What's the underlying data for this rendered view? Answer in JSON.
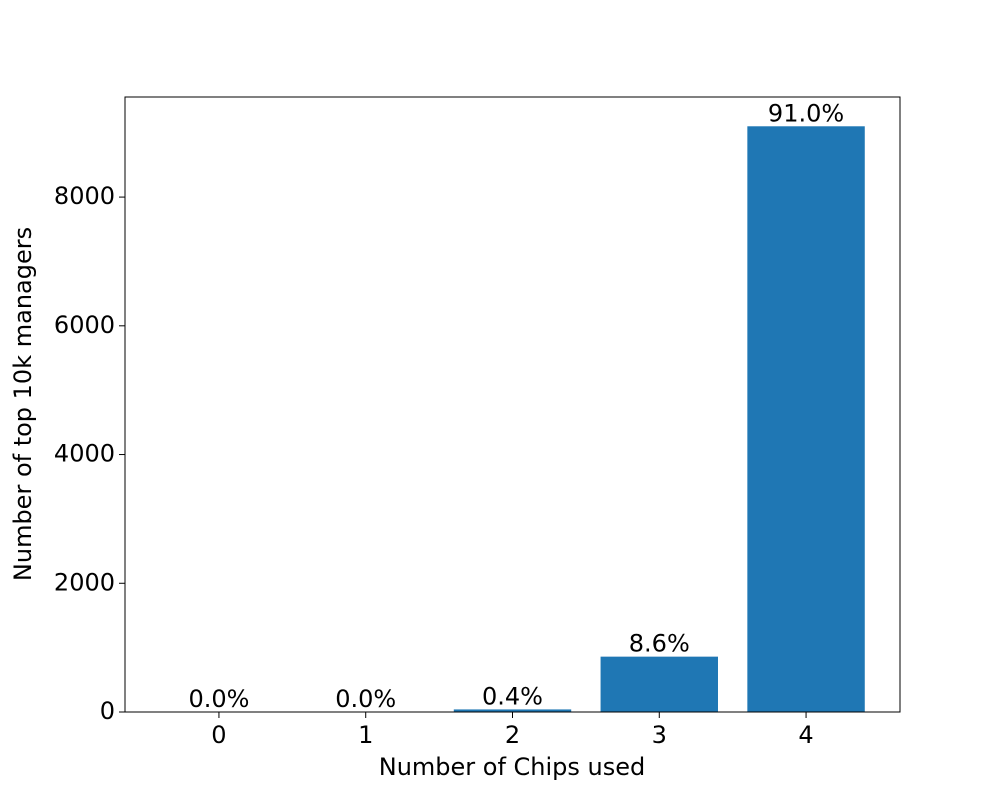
{
  "chart_data": {
    "type": "bar",
    "x_label": "Number of Chips used",
    "y_label": "Number of top 10k managers",
    "categories": [
      "0",
      "1",
      "2",
      "3",
      "4"
    ],
    "values": [
      0,
      0,
      40,
      860,
      9100
    ],
    "value_labels": [
      "0.0%",
      "0.0%",
      "0.4%",
      "8.6%",
      "91.0%"
    ],
    "color": "#1f77b4",
    "ylim": [
      0,
      9555
    ],
    "yticks": [
      0,
      2000,
      4000,
      6000,
      8000
    ],
    "grid": false
  }
}
